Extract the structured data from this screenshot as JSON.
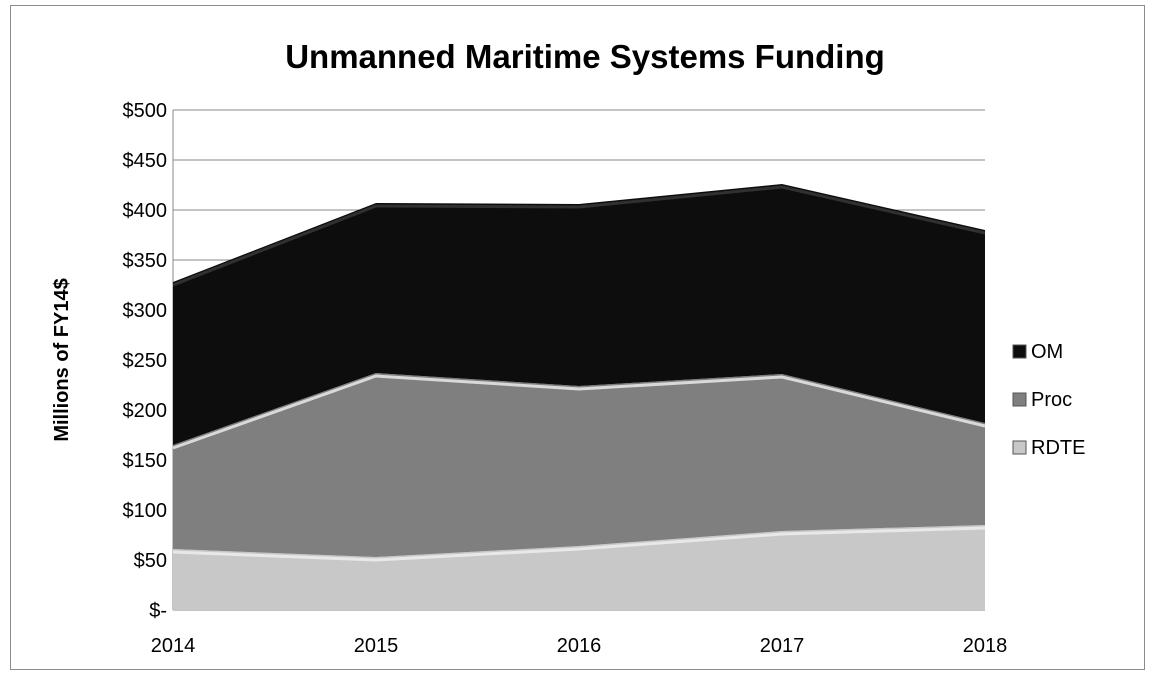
{
  "chart_data": {
    "type": "area",
    "stacked": true,
    "title": "Unmanned Maritime Systems Funding",
    "ylabel": "Millions of FY14$",
    "xlabel": "",
    "categories": [
      "2014",
      "2015",
      "2016",
      "2017",
      "2018"
    ],
    "ylim": [
      0,
      500
    ],
    "yticks": [
      0,
      50,
      100,
      150,
      200,
      250,
      300,
      350,
      400,
      450,
      500
    ],
    "ytick_labels": [
      "$-",
      "$50",
      "$100",
      "$150",
      "$200",
      "$250",
      "$300",
      "$350",
      "$400",
      "$450",
      "$500"
    ],
    "grid": true,
    "legend_position": "right",
    "series": [
      {
        "name": "RDTE",
        "values": [
          61,
          53,
          64,
          79,
          85
        ],
        "color": "#c8c8c8"
      },
      {
        "name": "Proc",
        "values": [
          104,
          184,
          160,
          157,
          102
        ],
        "color": "#7f7f7f"
      },
      {
        "name": "OM",
        "values": [
          163,
          170,
          182,
          190,
          193
        ],
        "color": "#0d0d0d"
      }
    ]
  }
}
